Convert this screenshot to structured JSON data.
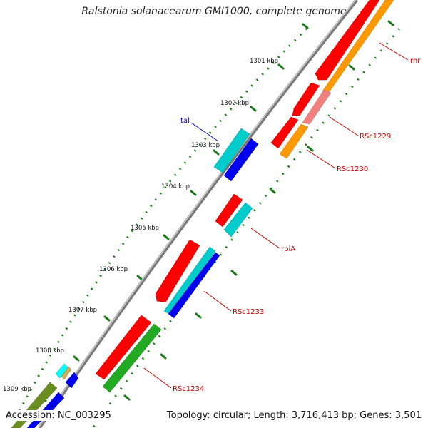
{
  "title": "Ralstonia solanacearum GMI1000, complete genome",
  "footer": {
    "accession": "Accession: NC_003295",
    "topology": "Topology: circular; Length: 3,716,413 bp; Genes: 3,501"
  },
  "ticks": [
    "1301 kbp",
    "1302 kbp",
    "1303 kbp",
    "1304 kbp",
    "1305 kbp",
    "1306 kbp",
    "1307 kbp",
    "1308 kbp",
    "1309 kbp"
  ],
  "gene_labels": [
    "rnr",
    "RSc1229",
    "RSc1230",
    "tal",
    "rpiA",
    "RSc1233",
    "RSc1234"
  ],
  "colors": {
    "red": "#ff0000",
    "orange": "#ff9900",
    "pink": "#f08080",
    "cyan": "#00cccc",
    "blue": "#0000ee",
    "green": "#22aa22",
    "olive": "#6b8e23",
    "backbone": "#888888",
    "tick_dots": "#1a7a1a",
    "label_red": "#cc0000",
    "label_blue": "#0000cc"
  }
}
